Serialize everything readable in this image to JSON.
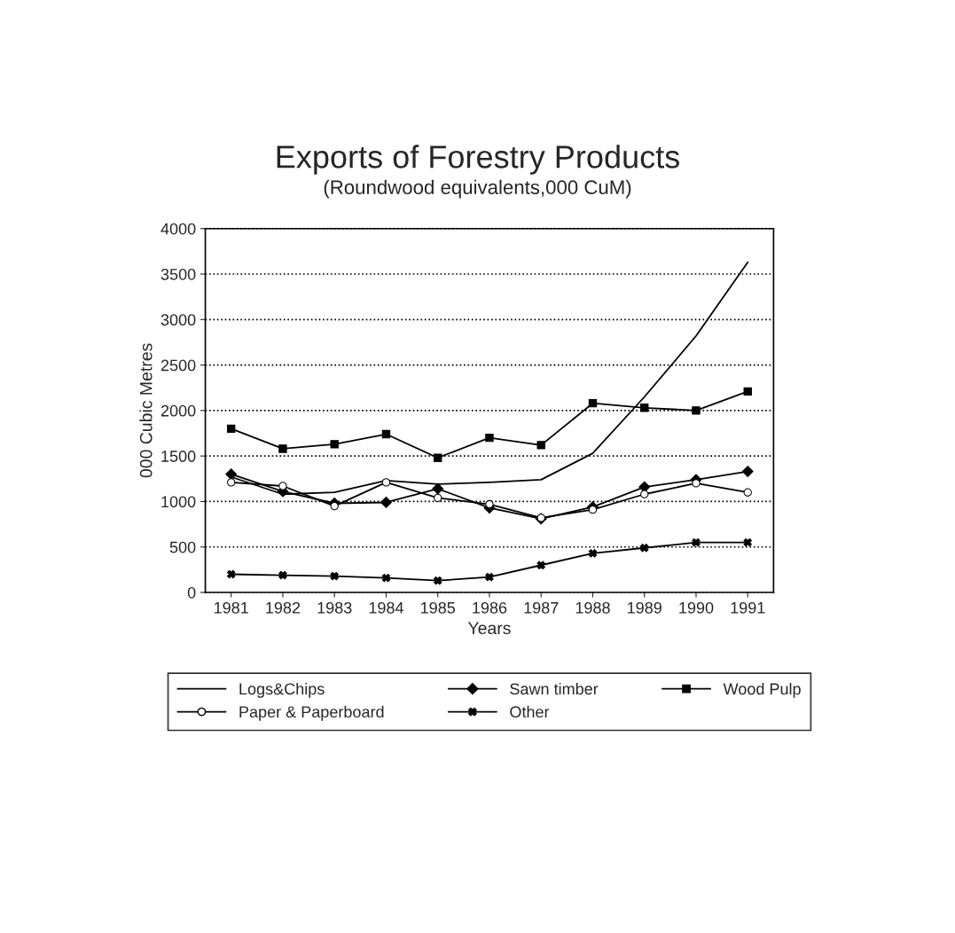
{
  "chart_data": {
    "type": "line",
    "title": "Exports of Forestry Products",
    "subtitle": "(Roundwood equivalents,000 CuM)",
    "xlabel": "Years",
    "ylabel": "000 Cubic Metres",
    "categories": [
      "1981",
      "1982",
      "1983",
      "1984",
      "1985",
      "1986",
      "1987",
      "1988",
      "1989",
      "1990",
      "1991"
    ],
    "series": [
      {
        "name": "Logs&Chips",
        "color": "#000000",
        "marker": "none",
        "values": [
          1270,
          1080,
          1100,
          1230,
          1190,
          1210,
          1240,
          1530,
          2150,
          2820,
          3630
        ]
      },
      {
        "name": "Sawn timber",
        "color": "#000000",
        "marker": "diamond",
        "values": [
          1300,
          1110,
          980,
          990,
          1140,
          930,
          810,
          940,
          1160,
          1240,
          1330
        ]
      },
      {
        "name": "Wood Pulp",
        "color": "#000000",
        "marker": "square",
        "values": [
          1800,
          1580,
          1630,
          1740,
          1480,
          1700,
          1620,
          2080,
          2030,
          2000,
          2210
        ]
      },
      {
        "name": "Paper & Paperboard",
        "color": "#000000",
        "marker": "circle",
        "values": [
          1210,
          1170,
          950,
          1210,
          1040,
          970,
          820,
          910,
          1080,
          1200,
          1100
        ]
      },
      {
        "name": "Other",
        "color": "#000000",
        "marker": "cross",
        "values": [
          200,
          190,
          180,
          160,
          130,
          170,
          300,
          430,
          490,
          550,
          550
        ]
      }
    ],
    "ylim": [
      0,
      4000
    ],
    "yticks": [
      0,
      500,
      1000,
      1500,
      2000,
      2500,
      3000,
      3500,
      4000
    ],
    "grid": "y",
    "legend": "bottom",
    "line_style": "solid"
  }
}
